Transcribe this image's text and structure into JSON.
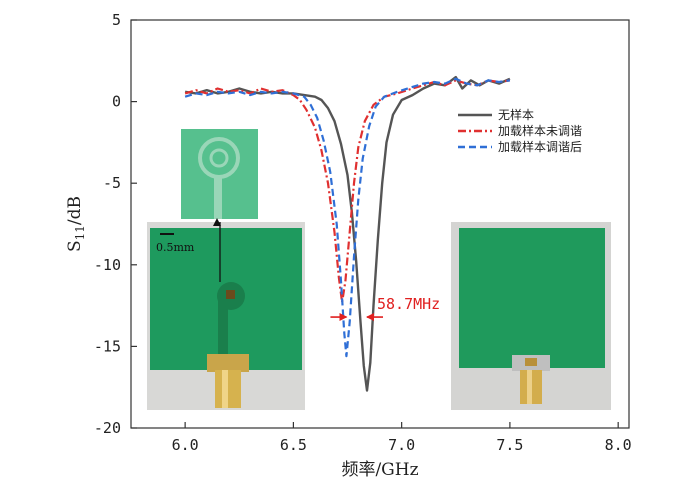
{
  "chart_data": {
    "type": "line",
    "xlabel": "频率/GHz",
    "ylabel": "S11/dB",
    "ylabel_main": "S",
    "ylabel_sub": "11",
    "ylabel_unit": "/dB",
    "xlim": [
      5.75,
      8.05
    ],
    "ylim": [
      -20,
      5
    ],
    "xticks": [
      6.0,
      6.5,
      7.0,
      7.5,
      8.0
    ],
    "xtick_labels": [
      "6.0",
      "6.5",
      "7.0",
      "7.5",
      "8.0"
    ],
    "yticks": [
      5,
      0,
      -5,
      -10,
      -15,
      -20
    ],
    "ytick_labels": [
      "5",
      "0",
      "-5",
      "-10",
      "-15",
      "-20"
    ],
    "legend_position": "right-upper",
    "series": [
      {
        "name": "无样本",
        "color": "#555555",
        "style": "solid",
        "points": [
          [
            6.0,
            0.6
          ],
          [
            6.05,
            0.5
          ],
          [
            6.1,
            0.7
          ],
          [
            6.15,
            0.5
          ],
          [
            6.2,
            0.6
          ],
          [
            6.25,
            0.8
          ],
          [
            6.3,
            0.6
          ],
          [
            6.35,
            0.5
          ],
          [
            6.4,
            0.6
          ],
          [
            6.45,
            0.5
          ],
          [
            6.5,
            0.5
          ],
          [
            6.55,
            0.4
          ],
          [
            6.6,
            0.3
          ],
          [
            6.63,
            0.1
          ],
          [
            6.66,
            -0.4
          ],
          [
            6.69,
            -1.2
          ],
          [
            6.72,
            -2.6
          ],
          [
            6.75,
            -4.5
          ],
          [
            6.77,
            -6.8
          ],
          [
            6.79,
            -9.8
          ],
          [
            6.81,
            -13.5
          ],
          [
            6.825,
            -16.2
          ],
          [
            6.84,
            -17.7
          ],
          [
            6.855,
            -16.0
          ],
          [
            6.87,
            -12.5
          ],
          [
            6.89,
            -8.5
          ],
          [
            6.91,
            -5.0
          ],
          [
            6.93,
            -2.5
          ],
          [
            6.96,
            -0.8
          ],
          [
            7.0,
            0.1
          ],
          [
            7.05,
            0.4
          ],
          [
            7.1,
            0.8
          ],
          [
            7.15,
            1.1
          ],
          [
            7.2,
            1.0
          ],
          [
            7.25,
            1.5
          ],
          [
            7.28,
            0.8
          ],
          [
            7.32,
            1.3
          ],
          [
            7.36,
            1.0
          ],
          [
            7.4,
            1.3
          ],
          [
            7.45,
            1.1
          ],
          [
            7.5,
            1.4
          ]
        ]
      },
      {
        "name": "加载样本未调谐",
        "color": "#e03030",
        "style": "dashdot",
        "points": [
          [
            6.0,
            0.5
          ],
          [
            6.05,
            0.7
          ],
          [
            6.1,
            0.5
          ],
          [
            6.15,
            0.8
          ],
          [
            6.2,
            0.6
          ],
          [
            6.25,
            0.7
          ],
          [
            6.3,
            0.5
          ],
          [
            6.35,
            0.8
          ],
          [
            6.4,
            0.6
          ],
          [
            6.45,
            0.7
          ],
          [
            6.5,
            0.4
          ],
          [
            6.53,
            0.1
          ],
          [
            6.56,
            -0.5
          ],
          [
            6.6,
            -1.6
          ],
          [
            6.63,
            -3.0
          ],
          [
            6.66,
            -5.0
          ],
          [
            6.69,
            -8.0
          ],
          [
            6.71,
            -10.8
          ],
          [
            6.725,
            -12.3
          ],
          [
            6.74,
            -11.0
          ],
          [
            6.76,
            -8.0
          ],
          [
            6.78,
            -5.0
          ],
          [
            6.8,
            -2.8
          ],
          [
            6.83,
            -1.2
          ],
          [
            6.87,
            -0.2
          ],
          [
            6.92,
            0.3
          ],
          [
            6.98,
            0.5
          ],
          [
            7.05,
            0.8
          ],
          [
            7.1,
            1.0
          ],
          [
            7.15,
            1.2
          ],
          [
            7.2,
            1.0
          ],
          [
            7.25,
            1.3
          ],
          [
            7.3,
            1.1
          ],
          [
            7.35,
            1.0
          ],
          [
            7.4,
            1.3
          ],
          [
            7.45,
            1.2
          ],
          [
            7.5,
            1.3
          ]
        ]
      },
      {
        "name": "加载样本调谐后",
        "color": "#2f6fd6",
        "style": "dashed",
        "points": [
          [
            6.0,
            0.3
          ],
          [
            6.05,
            0.5
          ],
          [
            6.1,
            0.4
          ],
          [
            6.15,
            0.6
          ],
          [
            6.2,
            0.5
          ],
          [
            6.25,
            0.6
          ],
          [
            6.3,
            0.4
          ],
          [
            6.35,
            0.6
          ],
          [
            6.4,
            0.5
          ],
          [
            6.45,
            0.6
          ],
          [
            6.5,
            0.5
          ],
          [
            6.55,
            0.3
          ],
          [
            6.58,
            -0.2
          ],
          [
            6.61,
            -1.0
          ],
          [
            6.64,
            -2.4
          ],
          [
            6.67,
            -4.3
          ],
          [
            6.7,
            -7.5
          ],
          [
            6.72,
            -11.0
          ],
          [
            6.735,
            -14.2
          ],
          [
            6.745,
            -15.6
          ],
          [
            6.76,
            -13.5
          ],
          [
            6.78,
            -9.5
          ],
          [
            6.8,
            -6.0
          ],
          [
            6.82,
            -3.5
          ],
          [
            6.85,
            -1.5
          ],
          [
            6.88,
            -0.3
          ],
          [
            6.92,
            0.3
          ],
          [
            6.98,
            0.6
          ],
          [
            7.05,
            0.9
          ],
          [
            7.1,
            1.1
          ],
          [
            7.15,
            1.2
          ],
          [
            7.2,
            1.1
          ],
          [
            7.25,
            1.4
          ],
          [
            7.3,
            1.1
          ],
          [
            7.35,
            1.0
          ],
          [
            7.4,
            1.3
          ],
          [
            7.45,
            1.2
          ],
          [
            7.5,
            1.3
          ]
        ]
      }
    ],
    "annotations": [
      {
        "text": "58.7MHz",
        "x_from": 6.745,
        "x_to": 6.84,
        "y": -13.2
      }
    ],
    "insets": {
      "scale_bar_label": "0.5mm"
    }
  }
}
